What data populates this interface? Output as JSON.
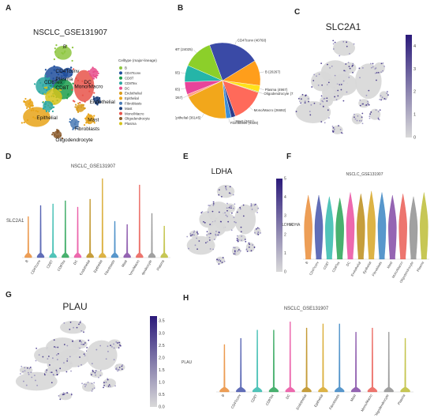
{
  "panels": {
    "A": {
      "letter": "A",
      "title": "NSCLC_GSE131907"
    },
    "B": {
      "letter": "B"
    },
    "C": {
      "letter": "C",
      "gene": "SLC2A1"
    },
    "D": {
      "letter": "D",
      "title": "NSCLC_GSE131907",
      "ylabel": "SLC2A1"
    },
    "E": {
      "letter": "E",
      "gene": "LDHA",
      "colorbar_label": "LDHA"
    },
    "F": {
      "letter": "F",
      "title": "NSCLC_GSE131907",
      "ylabel": "LDHA"
    },
    "G": {
      "letter": "G",
      "gene": "PLAU"
    },
    "H": {
      "letter": "H",
      "title": "NSCLC_GSE131907",
      "ylabel": "PLAU"
    }
  },
  "chart_data": [
    {
      "panel": "A",
      "type": "scatter",
      "title": "NSCLC_GSE131907",
      "legend_title": "Celltype (major-lineage)",
      "legend_position": "right",
      "cluster_labels": [
        "B",
        "CD4Tconv",
        "CD8Tex",
        "Plasma",
        "CD8T",
        "Mono/Macro",
        "DC",
        "Endothelial",
        "Epithelial",
        "Mast",
        "Fibroblasts",
        "Oligodendrocyte"
      ],
      "series": [
        {
          "name": "B",
          "color": "#8dc63f"
        },
        {
          "name": "CD4Tconv",
          "color": "#1f4e9c"
        },
        {
          "name": "CD8T",
          "color": "#1b9e4b"
        },
        {
          "name": "CD8Tex",
          "color": "#2aa7a0"
        },
        {
          "name": "DC",
          "color": "#e84c8b"
        },
        {
          "name": "Endothelial",
          "color": "#d99b1c"
        },
        {
          "name": "Epithelial",
          "color": "#e8a317"
        },
        {
          "name": "Fibroblasts",
          "color": "#4b7bb5"
        },
        {
          "name": "Mast",
          "color": "#1c3f7a"
        },
        {
          "name": "Mono/Macro",
          "color": "#e8534a"
        },
        {
          "name": "Oligodendrocyte",
          "color": "#8a5a2b"
        },
        {
          "name": "Plasma",
          "color": "#d4c21a"
        }
      ]
    },
    {
      "panel": "B",
      "type": "pie",
      "slices": [
        {
          "label": "CD4Tconv (40760)",
          "value": 40760,
          "color": "#3a4aa6"
        },
        {
          "label": "B (20267)",
          "value": 20267,
          "color": "#ff9e1b"
        },
        {
          "label": "Plasma (4967)",
          "value": 4967,
          "color": "#ffe21a"
        },
        {
          "label": "Oligodendrocyte (718)",
          "value": 718,
          "color": "#b9cf2a"
        },
        {
          "label": "Mono/Macro (26692)",
          "value": 26692,
          "color": "#ff6a5a"
        },
        {
          "label": "Mast (3421)",
          "value": 3421,
          "color": "#2b3b8c"
        },
        {
          "label": "Fibroblasts (4129)",
          "value": 4129,
          "color": "#3b8fd9"
        },
        {
          "label": "Epithelial (36145)",
          "value": 36145,
          "color": "#f2a71b"
        },
        {
          "label": "Endothelial (2267)",
          "value": 2267,
          "color": "#ff9f8a"
        },
        {
          "label": "DC (10065)",
          "value": 10065,
          "color": "#e8449a"
        },
        {
          "label": "CD8Tex (13265)",
          "value": 13265,
          "color": "#25b5a8"
        },
        {
          "label": "CD8T (24025)",
          "value": 24025,
          "color": "#8ccf2a"
        }
      ]
    },
    {
      "panel": "C",
      "type": "scatter",
      "title": "SLC2A1",
      "colorbar_ticks": [
        "0",
        "1",
        "2",
        "3",
        "4"
      ],
      "colorbar_range": [
        0,
        4.5
      ],
      "colors": {
        "low": "#d9d9d9",
        "high": "#2b1a7a"
      }
    },
    {
      "panel": "D",
      "type": "violin",
      "title": "NSCLC_GSE131907",
      "ylabel": "SLC2A1",
      "categories": [
        "B",
        "CD4Tconv",
        "CD8T",
        "CD8Tex",
        "DC",
        "Endothelial",
        "Epithelial",
        "Fibroblasts",
        "Mast",
        "Mono/Macro",
        "Oligodendrocyte",
        "Plasma"
      ],
      "max_values": [
        2.6,
        3.3,
        3.4,
        3.6,
        3.2,
        3.7,
        5.0,
        2.3,
        2.1,
        4.6,
        2.8,
        2.0
      ],
      "ylim": [
        0,
        5.2
      ]
    },
    {
      "panel": "E",
      "type": "scatter",
      "title": "LDHA",
      "colorbar_label": "LDHA",
      "colorbar_ticks": [
        "0",
        "1",
        "2",
        "3",
        "4",
        "5"
      ],
      "colorbar_range": [
        0,
        5
      ],
      "colors": {
        "low": "#d9d9d9",
        "high": "#2b1a7a"
      }
    },
    {
      "panel": "F",
      "type": "violin",
      "title": "NSCLC_GSE131907",
      "ylabel": "LDHA",
      "categories": [
        "B",
        "CD4Tconv",
        "CD8T",
        "CD8Tex",
        "DC",
        "Endothelial",
        "Epithelial",
        "Fibroblasts",
        "Mast",
        "Mono/Macro",
        "Oligodendrocyte",
        "Plasma"
      ],
      "max_values": [
        4.6,
        4.6,
        4.5,
        4.4,
        4.8,
        4.7,
        4.9,
        4.8,
        4.6,
        4.7,
        4.5,
        4.8
      ],
      "ylim": [
        0,
        5
      ]
    },
    {
      "panel": "G",
      "type": "scatter",
      "title": "PLAU",
      "colorbar_ticks": [
        "0.0",
        "0.5",
        "1.0",
        "1.5",
        "2.0",
        "2.5",
        "3.0",
        "3.5"
      ],
      "colorbar_range": [
        0,
        3.7
      ],
      "colors": {
        "low": "#d9d9d9",
        "high": "#2b1a7a"
      }
    },
    {
      "panel": "H",
      "type": "violin",
      "title": "NSCLC_GSE131907",
      "ylabel": "PLAU",
      "categories": [
        "B",
        "CD4Tconv",
        "CD8T",
        "CD8Tex",
        "DC",
        "Endothelial",
        "Epithelial",
        "Fibroblasts",
        "Mast",
        "Mono/Macro",
        "Oligodendrocyte",
        "Plasma"
      ],
      "max_values": [
        2.3,
        2.6,
        3.0,
        3.0,
        3.4,
        3.1,
        3.3,
        3.3,
        2.9,
        3.1,
        2.9,
        2.6
      ],
      "ylim": [
        0,
        3.6
      ]
    }
  ]
}
